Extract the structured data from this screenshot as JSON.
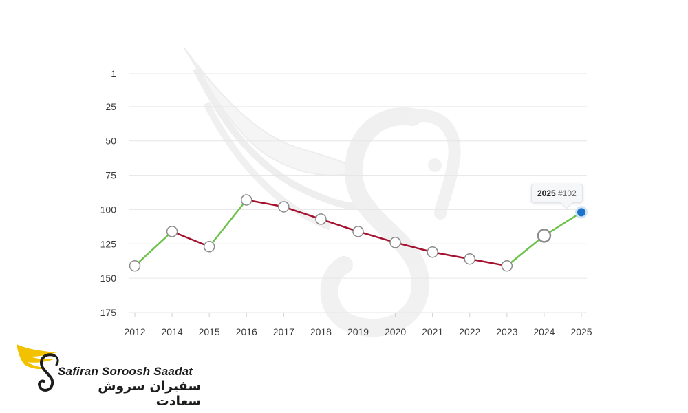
{
  "chart_data": {
    "type": "line",
    "x": [
      "2012",
      "2014",
      "2015",
      "2016",
      "2017",
      "2018",
      "2019",
      "2020",
      "2021",
      "2022",
      "2023",
      "2024",
      "2025"
    ],
    "series": [
      {
        "values": [
          141,
          116,
          127,
          93,
          98,
          107,
          116,
          124,
          131,
          136,
          141,
          119,
          102
        ]
      }
    ],
    "y_ticks": [
      "1",
      "25",
      "50",
      "75",
      "100",
      "125",
      "150",
      "175"
    ],
    "ylim": [
      1,
      175
    ],
    "y_inverted": true,
    "grid": "horizontal",
    "colors": {
      "rising": "#6cc24a",
      "falling": "#a3112e",
      "marker_fill": "#ffffff",
      "marker_stroke": "#8c8c8c",
      "active_marker": "#1a73c9"
    },
    "tooltip": {
      "year": "2025",
      "rank": "#102"
    }
  },
  "brand": {
    "name_en": "Safiran Soroosh Saadat",
    "name_fa": "سفیران سروش سعادت",
    "logo_icon": "winged-s-logo-icon",
    "logo_color": "#f2c200"
  }
}
